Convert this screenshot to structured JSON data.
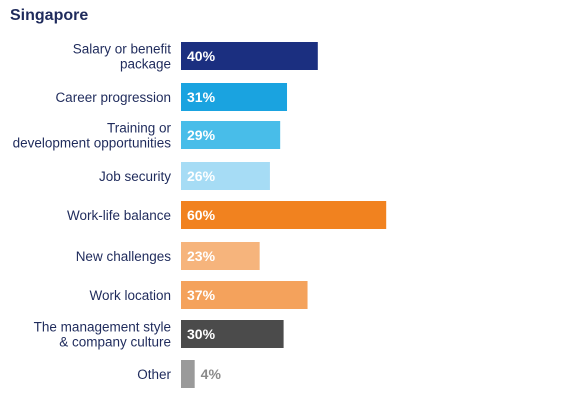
{
  "title": "Singapore",
  "chart_data": {
    "type": "bar",
    "orientation": "horizontal",
    "title": "Singapore",
    "categories": [
      [
        "Salary or benefit",
        "package"
      ],
      [
        "Career progression"
      ],
      [
        "Training or",
        "development opportunities"
      ],
      [
        "Job security"
      ],
      [
        "Work-life balance"
      ],
      [
        "New challenges"
      ],
      [
        "Work location"
      ],
      [
        "The management style",
        "& company culture"
      ],
      [
        "Other"
      ]
    ],
    "values": [
      40,
      31,
      29,
      26,
      60,
      23,
      37,
      30,
      4
    ],
    "value_labels": [
      "40%",
      "31%",
      "29%",
      "26%",
      "60%",
      "23%",
      "37%",
      "30%",
      "4%"
    ],
    "colors": [
      "#1b2f80",
      "#1aa3e0",
      "#48bde9",
      "#a6dcf5",
      "#f1821f",
      "#f6b47c",
      "#f4a25c",
      "#4b4b4b",
      "#9a9a9a"
    ],
    "label_colors": [
      "#ffffff",
      "#ffffff",
      "#ffffff",
      "#ffffff",
      "#ffffff",
      "#ffffff",
      "#ffffff",
      "#ffffff",
      "#8a8a8a"
    ],
    "unit": "%",
    "grid": false,
    "legend": "none"
  }
}
